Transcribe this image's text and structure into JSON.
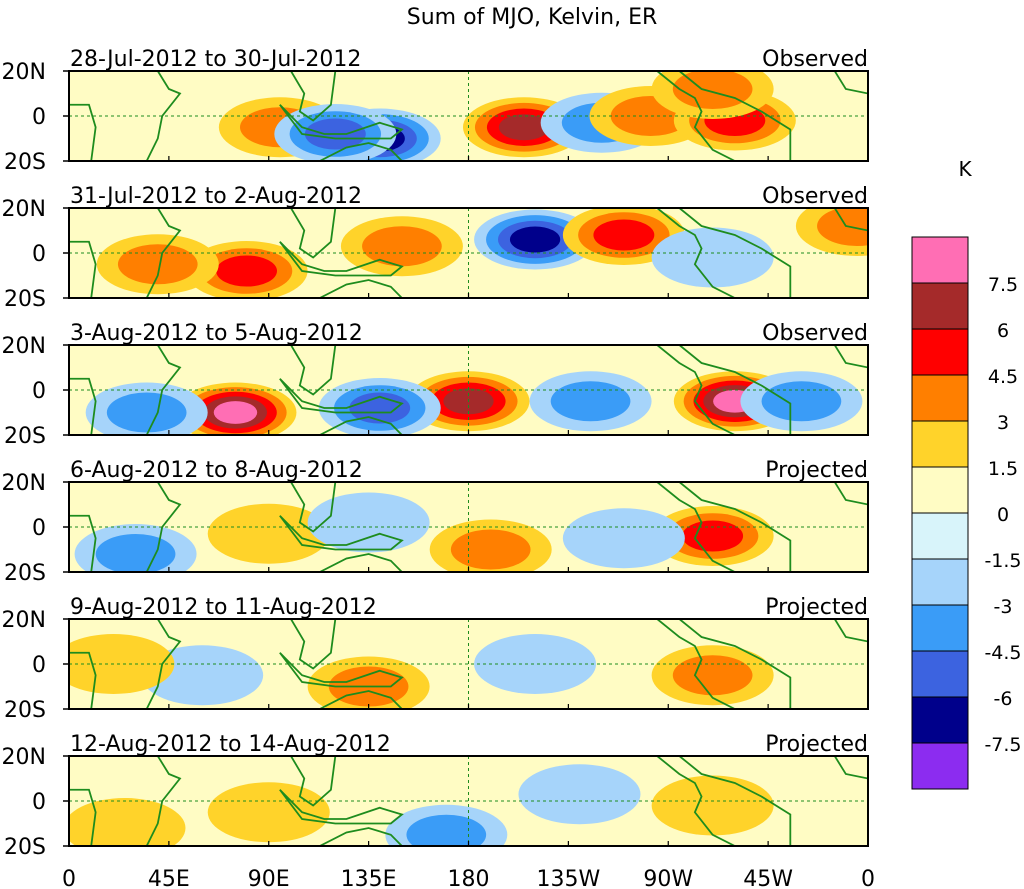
{
  "chart_data": {
    "type": "heatmap",
    "title": "Sum of MJO, Kelvin, ER",
    "units_label": "K",
    "x_ticks": [
      "0",
      "45E",
      "90E",
      "135E",
      "180",
      "135W",
      "90W",
      "45W",
      "0"
    ],
    "y_ticks": [
      "20N",
      "0",
      "20S"
    ],
    "xlim": [
      0,
      360
    ],
    "ylim": [
      -20,
      20
    ],
    "colorbar": {
      "labels": [
        "7.5",
        "6",
        "4.5",
        "3",
        "1.5",
        "0",
        "-1.5",
        "-3",
        "-4.5",
        "-6",
        "-7.5"
      ],
      "colors": [
        "#ff6eb4",
        "#a52a2a",
        "#ff0000",
        "#ff7f00",
        "#ffd32a",
        "#fffcc4",
        "#d8f4fa",
        "#a6d4fa",
        "#3a9cf7",
        "#3c63e0",
        "#00008b",
        "#8c2cf0"
      ]
    },
    "panels": [
      {
        "period": "28-Jul-2012 to 30-Jul-2012",
        "status": "Observed",
        "anomalies": [
          {
            "lon": 95,
            "lat": -5,
            "value": 3.5
          },
          {
            "lon": 140,
            "lat": -10,
            "value": -7
          },
          {
            "lon": 120,
            "lat": -8,
            "value": -4.5
          },
          {
            "lon": 205,
            "lat": -5,
            "value": 6
          },
          {
            "lon": 240,
            "lat": -3,
            "value": -4
          },
          {
            "lon": 262,
            "lat": 0,
            "value": 3
          },
          {
            "lon": 300,
            "lat": -2,
            "value": 4.5
          },
          {
            "lon": 290,
            "lat": 12,
            "value": 4
          }
        ]
      },
      {
        "period": "31-Jul-2012 to 2-Aug-2012",
        "status": "Observed",
        "anomalies": [
          {
            "lon": 80,
            "lat": -8,
            "value": 4.5
          },
          {
            "lon": 150,
            "lat": 3,
            "value": 3
          },
          {
            "lon": 210,
            "lat": 6,
            "value": -7
          },
          {
            "lon": 250,
            "lat": 8,
            "value": 4.5
          },
          {
            "lon": 40,
            "lat": -5,
            "value": 3
          },
          {
            "lon": 290,
            "lat": -2,
            "value": -2.5
          },
          {
            "lon": 355,
            "lat": 12,
            "value": 4
          }
        ]
      },
      {
        "period": "3-Aug-2012 to 5-Aug-2012",
        "status": "Observed",
        "anomalies": [
          {
            "lon": 75,
            "lat": -10,
            "value": 8
          },
          {
            "lon": 180,
            "lat": -5,
            "value": 6.5
          },
          {
            "lon": 300,
            "lat": -5,
            "value": 8
          },
          {
            "lon": 35,
            "lat": -10,
            "value": -4
          },
          {
            "lon": 140,
            "lat": -8,
            "value": -4.5
          },
          {
            "lon": 235,
            "lat": -5,
            "value": -3
          },
          {
            "lon": 330,
            "lat": -5,
            "value": -4
          }
        ]
      },
      {
        "period": "6-Aug-2012 to 8-Aug-2012",
        "status": "Projected",
        "anomalies": [
          {
            "lon": 290,
            "lat": -4,
            "value": 5
          },
          {
            "lon": 190,
            "lat": -10,
            "value": 3.5
          },
          {
            "lon": 90,
            "lat": -3,
            "value": 2
          },
          {
            "lon": 30,
            "lat": -12,
            "value": -4
          },
          {
            "lon": 135,
            "lat": 2,
            "value": -2
          },
          {
            "lon": 250,
            "lat": -5,
            "value": -2
          }
        ]
      },
      {
        "period": "9-Aug-2012 to 11-Aug-2012",
        "status": "Projected",
        "anomalies": [
          {
            "lon": 135,
            "lat": -10,
            "value": 3.5
          },
          {
            "lon": 290,
            "lat": -5,
            "value": 3
          },
          {
            "lon": 60,
            "lat": -5,
            "value": -2
          },
          {
            "lon": 210,
            "lat": 0,
            "value": -1.8
          },
          {
            "lon": 20,
            "lat": 0,
            "value": 2
          }
        ]
      },
      {
        "period": "12-Aug-2012 to 14-Aug-2012",
        "status": "Projected",
        "anomalies": [
          {
            "lon": 170,
            "lat": -15,
            "value": -3
          },
          {
            "lon": 90,
            "lat": -5,
            "value": 1.8
          },
          {
            "lon": 25,
            "lat": -12,
            "value": 2.5
          },
          {
            "lon": 290,
            "lat": -2,
            "value": 2
          },
          {
            "lon": 230,
            "lat": 3,
            "value": -1.5
          }
        ]
      }
    ]
  }
}
